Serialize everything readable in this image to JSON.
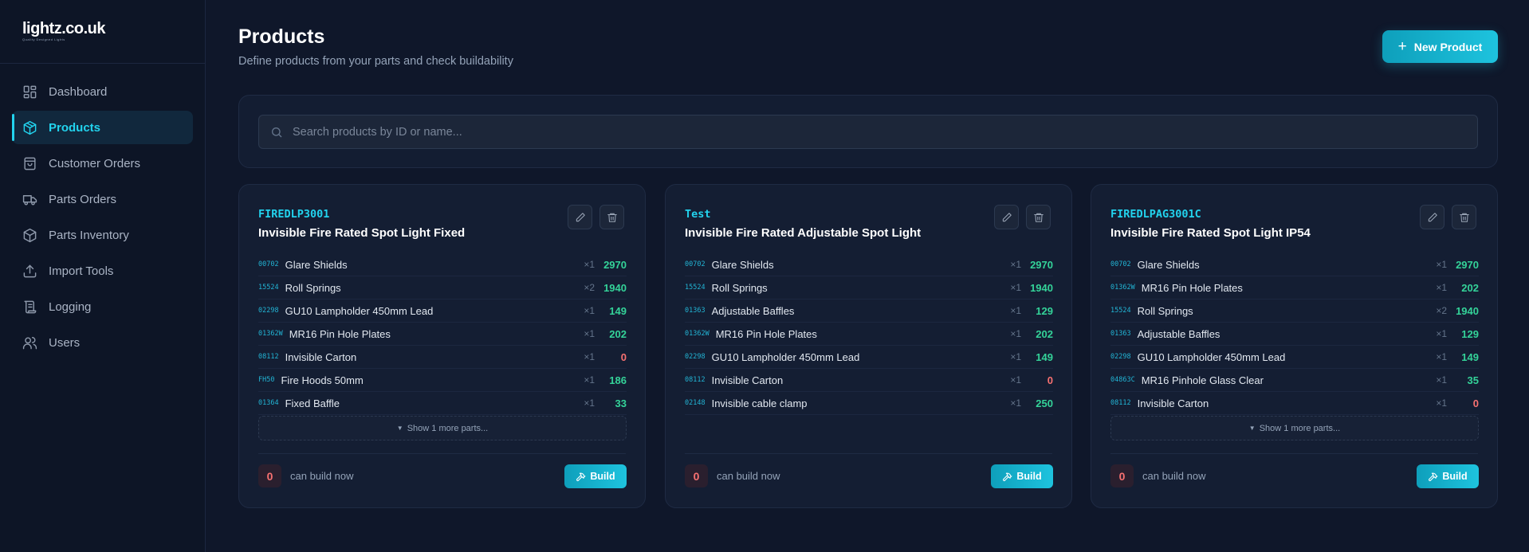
{
  "logo": {
    "text": "lightz.co.uk",
    "tagline": "Quality Designed Lights"
  },
  "nav": [
    {
      "label": "Dashboard",
      "icon": "dashboard-icon"
    },
    {
      "label": "Products",
      "icon": "cube-icon",
      "active": true
    },
    {
      "label": "Customer Orders",
      "icon": "shopping-bag-icon"
    },
    {
      "label": "Parts Orders",
      "icon": "truck-icon"
    },
    {
      "label": "Parts Inventory",
      "icon": "box-icon"
    },
    {
      "label": "Import Tools",
      "icon": "upload-icon"
    },
    {
      "label": "Logging",
      "icon": "scroll-icon"
    },
    {
      "label": "Users",
      "icon": "users-icon"
    }
  ],
  "header": {
    "title": "Products",
    "subtitle": "Define products from your parts and check buildability",
    "new_button": "New Product"
  },
  "search": {
    "placeholder": "Search products by ID or name..."
  },
  "colors": {
    "accent": "#22d3ee",
    "in_stock": "#34d399",
    "out_of_stock": "#f87171"
  },
  "products": [
    {
      "id": "FIREDLP3001",
      "name": "Invisible Fire Rated Spot Light Fixed",
      "parts": [
        {
          "code": "00702",
          "name": "Glare Shields",
          "qty": "×1",
          "stock": "2970"
        },
        {
          "code": "15524",
          "name": "Roll Springs",
          "qty": "×2",
          "stock": "1940"
        },
        {
          "code": "02298",
          "name": "GU10 Lampholder 450mm Lead",
          "qty": "×1",
          "stock": "149"
        },
        {
          "code": "01362W",
          "name": "MR16 Pin Hole Plates",
          "qty": "×1",
          "stock": "202"
        },
        {
          "code": "08112",
          "name": "Invisible Carton",
          "qty": "×1",
          "stock": "0"
        },
        {
          "code": "FH50",
          "name": "Fire Hoods 50mm",
          "qty": "×1",
          "stock": "186"
        },
        {
          "code": "01364",
          "name": "Fixed Baffle",
          "qty": "×1",
          "stock": "33"
        }
      ],
      "more": "Show 1 more parts...",
      "can_build": "0",
      "can_build_label": "can build now",
      "build_label": "Build"
    },
    {
      "id": "Test",
      "name": "Invisible Fire Rated Adjustable Spot Light",
      "parts": [
        {
          "code": "00702",
          "name": "Glare Shields",
          "qty": "×1",
          "stock": "2970"
        },
        {
          "code": "15524",
          "name": "Roll Springs",
          "qty": "×1",
          "stock": "1940"
        },
        {
          "code": "01363",
          "name": "Adjustable Baffles",
          "qty": "×1",
          "stock": "129"
        },
        {
          "code": "01362W",
          "name": "MR16 Pin Hole Plates",
          "qty": "×1",
          "stock": "202"
        },
        {
          "code": "02298",
          "name": "GU10 Lampholder 450mm Lead",
          "qty": "×1",
          "stock": "149"
        },
        {
          "code": "08112",
          "name": "Invisible Carton",
          "qty": "×1",
          "stock": "0"
        },
        {
          "code": "02148",
          "name": "Invisible cable clamp",
          "qty": "×1",
          "stock": "250"
        }
      ],
      "more": "",
      "can_build": "0",
      "can_build_label": "can build now",
      "build_label": "Build"
    },
    {
      "id": "FIREDLPAG3001C",
      "name": "Invisible Fire Rated Spot Light IP54",
      "parts": [
        {
          "code": "00702",
          "name": "Glare Shields",
          "qty": "×1",
          "stock": "2970"
        },
        {
          "code": "01362W",
          "name": "MR16 Pin Hole Plates",
          "qty": "×1",
          "stock": "202"
        },
        {
          "code": "15524",
          "name": "Roll Springs",
          "qty": "×2",
          "stock": "1940"
        },
        {
          "code": "01363",
          "name": "Adjustable Baffles",
          "qty": "×1",
          "stock": "129"
        },
        {
          "code": "02298",
          "name": "GU10 Lampholder 450mm Lead",
          "qty": "×1",
          "stock": "149"
        },
        {
          "code": "04863C",
          "name": "MR16 Pinhole Glass Clear",
          "qty": "×1",
          "stock": "35"
        },
        {
          "code": "08112",
          "name": "Invisible Carton",
          "qty": "×1",
          "stock": "0"
        }
      ],
      "more": "Show 1 more parts...",
      "can_build": "0",
      "can_build_label": "can build now",
      "build_label": "Build"
    }
  ]
}
